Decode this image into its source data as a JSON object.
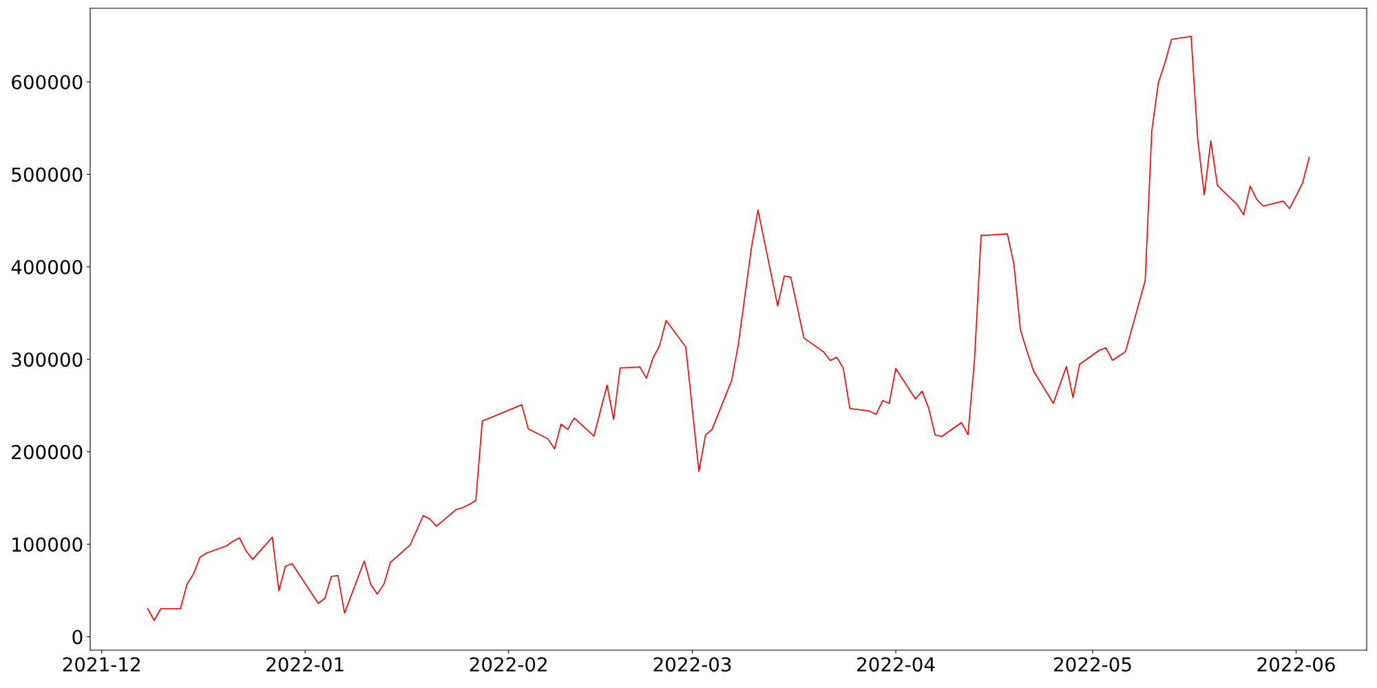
{
  "chart_data": {
    "type": "line",
    "xlim": [
      "2021-11-29T06:00",
      "2022-06-11T18:00"
    ],
    "ylim": [
      -14500,
      679600
    ],
    "xticks": [
      "2021-12",
      "2022-01",
      "2022-02",
      "2022-03",
      "2022-04",
      "2022-05",
      "2022-06"
    ],
    "yticks": [
      0,
      100000,
      200000,
      300000,
      400000,
      500000,
      600000
    ],
    "grid": false,
    "legend": false,
    "marker": "none",
    "line_style": "solid",
    "series": [
      {
        "color": "#ff0000",
        "x": [
          "2021-12-08",
          "2021-12-09",
          "2021-12-10",
          "2021-12-13",
          "2021-12-14",
          "2021-12-15",
          "2021-12-16",
          "2021-12-17",
          "2021-12-20",
          "2021-12-21",
          "2021-12-22",
          "2021-12-23",
          "2021-12-24",
          "2021-12-27",
          "2021-12-28",
          "2021-12-29",
          "2021-12-30",
          "2022-01-03",
          "2022-01-04",
          "2022-01-05",
          "2022-01-06",
          "2022-01-07",
          "2022-01-10",
          "2022-01-11",
          "2022-01-12",
          "2022-01-13",
          "2022-01-14",
          "2022-01-17",
          "2022-01-19",
          "2022-01-20",
          "2022-01-21",
          "2022-01-24",
          "2022-01-25",
          "2022-01-26",
          "2022-01-27",
          "2022-01-28",
          "2022-02-03",
          "2022-02-04",
          "2022-02-07",
          "2022-02-08",
          "2022-02-09",
          "2022-02-10",
          "2022-02-11",
          "2022-02-14",
          "2022-02-16",
          "2022-02-17",
          "2022-02-18",
          "2022-02-21",
          "2022-02-22",
          "2022-02-23",
          "2022-02-24",
          "2022-02-25",
          "2022-02-28",
          "2022-03-02",
          "2022-03-03",
          "2022-03-04",
          "2022-03-07",
          "2022-03-08",
          "2022-03-10",
          "2022-03-11",
          "2022-03-14",
          "2022-03-15",
          "2022-03-16",
          "2022-03-18",
          "2022-03-21",
          "2022-03-22",
          "2022-03-23",
          "2022-03-24",
          "2022-03-25",
          "2022-03-28",
          "2022-03-29",
          "2022-03-30",
          "2022-03-31",
          "2022-04-01",
          "2022-04-04",
          "2022-04-05",
          "2022-04-06",
          "2022-04-07",
          "2022-04-08",
          "2022-04-11",
          "2022-04-12",
          "2022-04-13",
          "2022-04-14",
          "2022-04-15",
          "2022-04-18",
          "2022-04-19",
          "2022-04-20",
          "2022-04-21",
          "2022-04-22",
          "2022-04-25",
          "2022-04-27",
          "2022-04-28",
          "2022-04-29",
          "2022-05-02",
          "2022-05-03",
          "2022-05-04",
          "2022-05-06",
          "2022-05-09",
          "2022-05-10",
          "2022-05-11",
          "2022-05-12",
          "2022-05-13",
          "2022-05-16",
          "2022-05-17",
          "2022-05-18",
          "2022-05-19",
          "2022-05-20",
          "2022-05-23",
          "2022-05-24",
          "2022-05-25",
          "2022-05-26",
          "2022-05-27",
          "2022-05-30",
          "2022-05-31",
          "2022-06-02",
          "2022-06-03"
        ],
        "values": [
          30300,
          17700,
          30300,
          30300,
          56700,
          68200,
          86300,
          90600,
          98200,
          103200,
          106900,
          92800,
          83800,
          107600,
          49800,
          76200,
          79100,
          36100,
          41500,
          65300,
          66100,
          25600,
          81900,
          56300,
          46200,
          57000,
          80500,
          99300,
          131000,
          127400,
          119500,
          137500,
          139700,
          143000,
          147300,
          233300,
          250800,
          224900,
          213800,
          203200,
          229900,
          224200,
          236500,
          216900,
          272100,
          235100,
          290700,
          291700,
          279400,
          301300,
          314600,
          342000,
          313300,
          178600,
          218200,
          224200,
          277400,
          315600,
          420400,
          461300,
          357800,
          390100,
          388800,
          323000,
          308000,
          298700,
          302300,
          290300,
          246800,
          244100,
          240400,
          255400,
          252400,
          290000,
          257000,
          265500,
          247300,
          218200,
          216500,
          231600,
          218500,
          300000,
          434200,
          434200,
          435700,
          402900,
          331400,
          308600,
          287200,
          252400,
          292300,
          258700,
          294600,
          309700,
          312500,
          298900,
          308300,
          385000,
          546500,
          598800,
          620200,
          645900,
          649200,
          538500,
          477600,
          536100,
          488100,
          467200,
          456300,
          487200,
          472900,
          465700,
          471000,
          462900,
          491000,
          518500
        ]
      }
    ]
  }
}
